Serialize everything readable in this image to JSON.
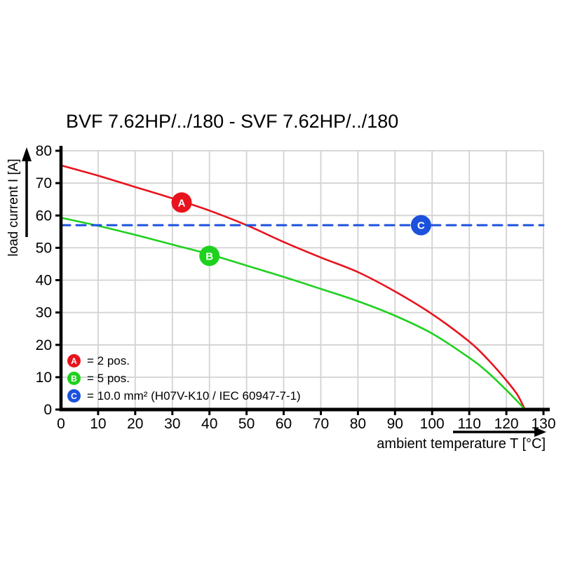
{
  "page": {
    "title": "BVF 7.62HP/../180 - SVF 7.62HP/../180"
  },
  "chart_data": {
    "type": "line",
    "title": "BVF 7.62HP/../180 - SVF 7.62HP/../180",
    "xlabel": "ambient temperature T [°C]",
    "ylabel": "load current I [A]",
    "xlim": [
      0,
      130
    ],
    "ylim": [
      0,
      80
    ],
    "xticks": [
      0,
      10,
      20,
      30,
      40,
      50,
      60,
      70,
      80,
      90,
      100,
      110,
      120,
      130
    ],
    "yticks": [
      0,
      10,
      20,
      30,
      40,
      50,
      60,
      70,
      80
    ],
    "grid": true,
    "legend_position": "lower-left",
    "series": [
      {
        "id": "A",
        "legend_label": "= 2 pos.",
        "color": "#e8131d",
        "line_style": "solid",
        "marker": {
          "label": "A",
          "x": 32.5,
          "y": 64
        },
        "points": [
          [
            0,
            75.5
          ],
          [
            10,
            72.3
          ],
          [
            20,
            68.8
          ],
          [
            30,
            65.3
          ],
          [
            40,
            61.5
          ],
          [
            50,
            57
          ],
          [
            60,
            51.8
          ],
          [
            70,
            47
          ],
          [
            80,
            42.5
          ],
          [
            90,
            36.5
          ],
          [
            100,
            29.5
          ],
          [
            110,
            21
          ],
          [
            115,
            15.5
          ],
          [
            120,
            9
          ],
          [
            123,
            4.5
          ],
          [
            125,
            0
          ]
        ]
      },
      {
        "id": "B",
        "legend_label": "= 5 pos.",
        "color": "#1fd11f",
        "line_style": "solid",
        "marker": {
          "label": "B",
          "x": 40,
          "y": 47.5
        },
        "points": [
          [
            0,
            59.3
          ],
          [
            10,
            56.8
          ],
          [
            20,
            54
          ],
          [
            30,
            51
          ],
          [
            40,
            48
          ],
          [
            50,
            44.5
          ],
          [
            60,
            41
          ],
          [
            70,
            37.3
          ],
          [
            80,
            33.5
          ],
          [
            90,
            29
          ],
          [
            100,
            23.5
          ],
          [
            110,
            16
          ],
          [
            115,
            11.5
          ],
          [
            120,
            6
          ],
          [
            123,
            2.5
          ],
          [
            125,
            0
          ]
        ]
      },
      {
        "id": "C",
        "legend_label": "= 10.0 mm² (H07V-K10 / IEC 60947-7-1)",
        "color": "#1b51dd",
        "line_style": "dashed",
        "marker": {
          "label": "C",
          "x": 97,
          "y": 57
        },
        "points": [
          [
            0,
            57
          ],
          [
            130,
            57
          ]
        ]
      }
    ],
    "colors": {
      "grid": "#d2d2d2",
      "axis": "#000000",
      "background": "#ffffff"
    }
  }
}
